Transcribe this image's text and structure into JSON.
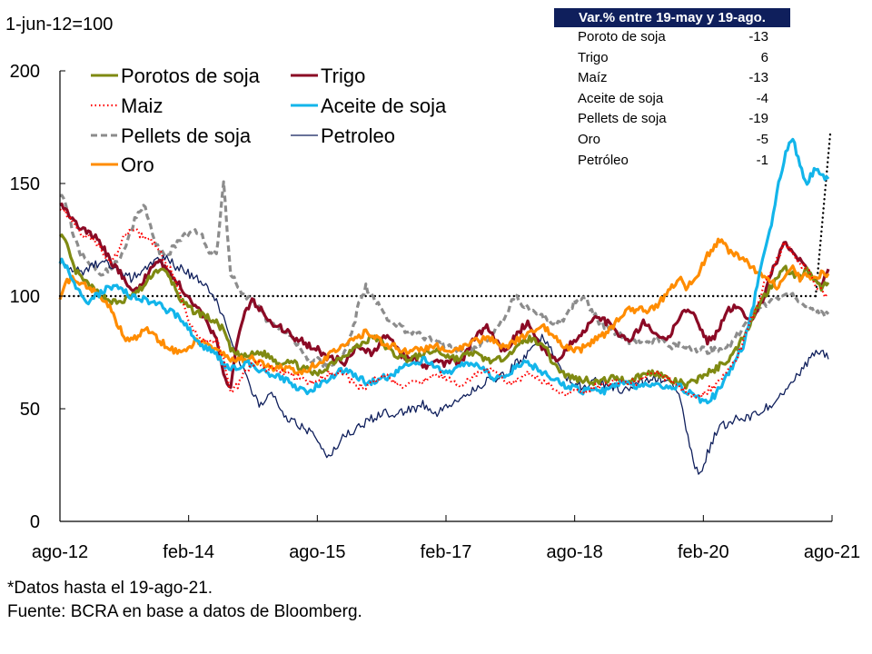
{
  "unit_label": "1-jun-12=100",
  "footnotes": {
    "note": "*Datos hasta el 19-ago-21.",
    "source": "Fuente: BCRA en base a datos de Bloomberg."
  },
  "variation_table": {
    "title": "Var.% entre 19-may y 19-ago.",
    "header_color": "#0f1f5c",
    "rows": [
      {
        "label": "Poroto de soja",
        "value": "-13"
      },
      {
        "label": "Trigo",
        "value": "6"
      },
      {
        "label": "Maíz",
        "value": "-13"
      },
      {
        "label": "Aceite de soja",
        "value": "-4"
      },
      {
        "label": "Pellets de soja",
        "value": "-19"
      },
      {
        "label": "Oro",
        "value": "-5"
      },
      {
        "label": "Petróleo",
        "value": "-1"
      }
    ]
  },
  "chart_data": {
    "type": "line",
    "title": "",
    "xlabel": "",
    "ylabel": "1-jun-12=100",
    "ylim": [
      0,
      200
    ],
    "yticks": [
      0,
      50,
      100,
      150,
      200
    ],
    "xlim": [
      "ago-12",
      "ago-21"
    ],
    "xtick_labels": [
      "ago-12",
      "feb-14",
      "ago-15",
      "feb-17",
      "ago-18",
      "feb-20",
      "ago-21"
    ],
    "grid": false,
    "legend_position": "top-left",
    "reference_line": {
      "y": 100,
      "style": "dotted",
      "color": "#000000"
    },
    "x_frequency": "monthly, ago-12 to ago-21",
    "series": [
      {
        "name": "Porotos de soja",
        "color": "#7f8a12",
        "style": "solid",
        "width": "thick",
        "values": [
          128,
          122,
          112,
          108,
          105,
          102,
          100,
          98,
          97,
          98,
          100,
          102,
          105,
          110,
          112,
          110,
          105,
          98,
          95,
          93,
          92,
          90,
          88,
          85,
          76,
          74,
          73,
          74,
          75,
          74,
          72,
          70,
          72,
          70,
          68,
          67,
          65,
          67,
          70,
          72,
          74,
          76,
          78,
          80,
          82,
          80,
          77,
          74,
          73,
          72,
          73,
          74,
          75,
          76,
          74,
          73,
          72,
          74,
          75,
          73,
          72,
          71,
          72,
          75,
          76,
          80,
          81,
          80,
          79,
          72,
          68,
          65,
          64,
          63,
          63,
          62,
          62,
          63,
          64,
          63,
          62,
          64,
          65,
          66,
          66,
          64,
          62,
          62,
          60,
          62,
          64,
          66,
          67,
          70,
          72,
          76,
          82,
          88,
          95,
          100,
          105,
          110,
          112,
          110,
          108,
          112,
          106,
          104,
          106
        ]
      },
      {
        "name": "Trigo",
        "color": "#8b0a25",
        "style": "solid",
        "width": "thick",
        "values": [
          142,
          138,
          133,
          130,
          128,
          126,
          122,
          116,
          112,
          108,
          104,
          102,
          108,
          114,
          116,
          112,
          108,
          104,
          100,
          96,
          92,
          86,
          80,
          65,
          60,
          82,
          92,
          98,
          95,
          90,
          88,
          86,
          84,
          80,
          80,
          78,
          77,
          74,
          72,
          72,
          70,
          75,
          78,
          76,
          74,
          80,
          82,
          78,
          74,
          72,
          72,
          68,
          70,
          72,
          70,
          72,
          70,
          74,
          80,
          84,
          86,
          82,
          76,
          78,
          82,
          86,
          88,
          80,
          76,
          74,
          72,
          76,
          80,
          82,
          86,
          90,
          90,
          88,
          84,
          82,
          80,
          84,
          88,
          86,
          82,
          80,
          84,
          90,
          94,
          92,
          86,
          80,
          82,
          88,
          94,
          96,
          92,
          88,
          95,
          100,
          110,
          118,
          124,
          120,
          116,
          112,
          108,
          104,
          112
        ]
      },
      {
        "name": "Maiz",
        "color": "#ff0000",
        "style": "dotted",
        "width": "medium",
        "values": [
          140,
          136,
          132,
          128,
          126,
          124,
          120,
          116,
          118,
          126,
          130,
          128,
          126,
          124,
          120,
          114,
          110,
          100,
          90,
          84,
          80,
          80,
          80,
          72,
          58,
          60,
          66,
          70,
          70,
          68,
          67,
          66,
          66,
          64,
          64,
          62,
          62,
          64,
          66,
          66,
          66,
          62,
          60,
          60,
          62,
          64,
          64,
          62,
          60,
          60,
          62,
          62,
          64,
          66,
          64,
          62,
          60,
          62,
          64,
          66,
          68,
          66,
          64,
          62,
          62,
          64,
          66,
          64,
          62,
          60,
          58,
          56,
          58,
          58,
          58,
          60,
          60,
          60,
          62,
          62,
          62,
          62,
          64,
          66,
          66,
          64,
          62,
          60,
          58,
          56,
          56,
          58,
          60,
          64,
          68,
          72,
          80,
          88,
          96,
          106,
          110,
          118,
          124,
          118,
          114,
          112,
          106,
          102,
          100
        ]
      },
      {
        "name": "Aceite de soja",
        "color": "#13b5ea",
        "style": "solid",
        "width": "thick",
        "values": [
          116,
          112,
          106,
          100,
          98,
          100,
          102,
          104,
          104,
          102,
          100,
          100,
          98,
          98,
          96,
          94,
          92,
          90,
          86,
          82,
          78,
          76,
          74,
          70,
          68,
          68,
          70,
          70,
          66,
          66,
          64,
          64,
          62,
          60,
          58,
          58,
          60,
          62,
          64,
          66,
          67,
          66,
          64,
          62,
          62,
          64,
          64,
          66,
          68,
          70,
          70,
          72,
          70,
          68,
          66,
          66,
          68,
          70,
          70,
          68,
          66,
          64,
          64,
          66,
          68,
          70,
          70,
          68,
          66,
          64,
          62,
          60,
          60,
          58,
          58,
          58,
          58,
          58,
          60,
          62,
          62,
          60,
          60,
          60,
          60,
          60,
          60,
          60,
          58,
          56,
          54,
          54,
          56,
          60,
          66,
          72,
          78,
          90,
          104,
          120,
          132,
          150,
          164,
          170,
          158,
          150,
          156,
          154,
          152
        ]
      },
      {
        "name": "Pellets de soja",
        "color": "#8c8c8c",
        "style": "dashed",
        "width": "thick",
        "values": [
          146,
          138,
          126,
          118,
          116,
          112,
          110,
          112,
          116,
          120,
          130,
          138,
          140,
          128,
          120,
          118,
          122,
          126,
          128,
          130,
          126,
          120,
          118,
          150,
          110,
          104,
          100,
          98,
          96,
          90,
          88,
          86,
          84,
          80,
          76,
          72,
          72,
          70,
          70,
          72,
          76,
          84,
          96,
          104,
          100,
          96,
          90,
          88,
          86,
          84,
          84,
          82,
          82,
          80,
          78,
          78,
          76,
          76,
          76,
          78,
          80,
          84,
          88,
          94,
          100,
          96,
          94,
          92,
          90,
          88,
          88,
          90,
          96,
          100,
          98,
          92,
          88,
          86,
          84,
          82,
          80,
          80,
          78,
          80,
          80,
          80,
          78,
          78,
          78,
          76,
          76,
          76,
          76,
          76,
          78,
          82,
          86,
          90,
          94,
          96,
          98,
          100,
          102,
          100,
          98,
          96,
          94,
          92,
          92
        ]
      },
      {
        "name": "Petroleo",
        "color": "#0f1f5c",
        "style": "solid",
        "width": "thin",
        "values": [
          116,
          114,
          112,
          110,
          112,
          114,
          116,
          114,
          112,
          110,
          108,
          110,
          112,
          114,
          116,
          118,
          114,
          112,
          110,
          108,
          106,
          102,
          98,
          90,
          82,
          74,
          66,
          58,
          52,
          54,
          56,
          50,
          46,
          44,
          42,
          40,
          36,
          32,
          28,
          34,
          38,
          40,
          42,
          44,
          46,
          48,
          48,
          46,
          48,
          50,
          50,
          52,
          50,
          48,
          50,
          52,
          54,
          56,
          58,
          60,
          62,
          62,
          64,
          66,
          70,
          72,
          76,
          80,
          82,
          76,
          70,
          64,
          62,
          60,
          60,
          62,
          62,
          60,
          60,
          58,
          60,
          62,
          62,
          62,
          64,
          62,
          60,
          58,
          42,
          26,
          20,
          30,
          38,
          42,
          44,
          46,
          46,
          46,
          48,
          50,
          52,
          56,
          58,
          62,
          66,
          70,
          74,
          76,
          72
        ]
      },
      {
        "name": "Oro",
        "color": "#ff8c00",
        "style": "solid",
        "width": "thick",
        "values": [
          100,
          106,
          108,
          106,
          104,
          102,
          98,
          96,
          88,
          82,
          80,
          82,
          86,
          84,
          80,
          78,
          76,
          74,
          76,
          80,
          80,
          78,
          76,
          74,
          72,
          72,
          72,
          72,
          70,
          70,
          68,
          68,
          68,
          66,
          66,
          68,
          70,
          72,
          74,
          76,
          78,
          80,
          82,
          84,
          82,
          80,
          78,
          78,
          76,
          76,
          76,
          76,
          78,
          78,
          76,
          76,
          76,
          78,
          80,
          80,
          82,
          80,
          78,
          78,
          80,
          82,
          84,
          86,
          86,
          84,
          80,
          78,
          76,
          76,
          78,
          80,
          82,
          84,
          88,
          92,
          94,
          94,
          94,
          94,
          96,
          100,
          104,
          108,
          104,
          106,
          112,
          118,
          122,
          126,
          120,
          118,
          116,
          114,
          110,
          108,
          106,
          104,
          110,
          112,
          108,
          110,
          108,
          110,
          110
        ]
      }
    ]
  }
}
